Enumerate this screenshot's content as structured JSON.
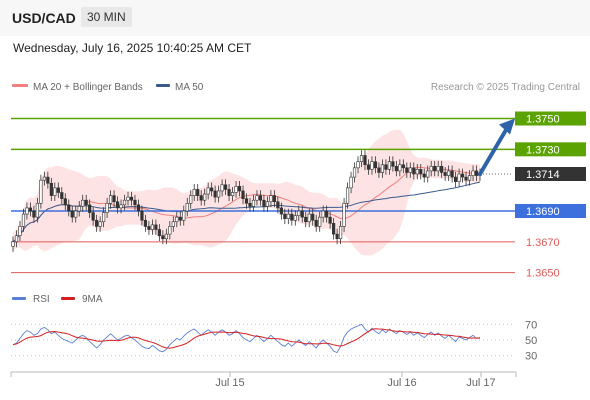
{
  "header": {
    "symbol": "USD/CAD",
    "timeframe": "30 MIN"
  },
  "datetime": "Wednesday, July 16, 2025 10:40:25 AM CET",
  "legend": {
    "ma20": "MA 20 + Bollinger Bands",
    "ma50": "MA 50",
    "rsi": "RSI",
    "ma9": "9MA"
  },
  "credit": "Research © 2025 Trading Central",
  "colors": {
    "resistance": "#5ba300",
    "pivot": "#3d6fdd",
    "support": "#e05a5a",
    "ma20": "#f08080",
    "ma50": "#3a5a8f",
    "bb_fill": "#fde3e3",
    "arrow": "#2e62a8",
    "current": "#333333",
    "rsi": "#5a7fd6",
    "rsi_ma": "#d42020"
  },
  "chart_data": [
    {
      "type": "candlestick",
      "ylim": [
        1.3642,
        1.3762
      ],
      "x_ticks": [
        "Jul 15",
        "Jul 16",
        "Jul 17"
      ],
      "levels": [
        {
          "label": "1.3750",
          "value": 1.375,
          "kind": "resistance",
          "style": "box"
        },
        {
          "label": "1.3730",
          "value": 1.373,
          "kind": "resistance",
          "style": "box"
        },
        {
          "label": "1.3714",
          "value": 1.3714,
          "kind": "current",
          "style": "box"
        },
        {
          "label": "1.3690",
          "value": 1.369,
          "kind": "pivot",
          "style": "box"
        },
        {
          "label": "1.3670",
          "value": 1.367,
          "kind": "support",
          "style": "text"
        },
        {
          "label": "1.3650",
          "value": 1.365,
          "kind": "support",
          "style": "text"
        }
      ],
      "close": [
        1.367,
        1.3674,
        1.368,
        1.3688,
        1.3692,
        1.369,
        1.3686,
        1.3695,
        1.371,
        1.3712,
        1.3708,
        1.37,
        1.3705,
        1.3702,
        1.3698,
        1.3694,
        1.369,
        1.3686,
        1.369,
        1.3693,
        1.3697,
        1.3694,
        1.3689,
        1.3684,
        1.368,
        1.3683,
        1.3689,
        1.3695,
        1.37,
        1.3696,
        1.3692,
        1.3694,
        1.3697,
        1.3699,
        1.3697,
        1.3694,
        1.369,
        1.3684,
        1.368,
        1.3678,
        1.3681,
        1.3678,
        1.3674,
        1.3672,
        1.3675,
        1.368,
        1.3683,
        1.3686,
        1.3684,
        1.369,
        1.3695,
        1.37,
        1.3704,
        1.37,
        1.3697,
        1.3701,
        1.3705,
        1.3703,
        1.3699,
        1.3703,
        1.3707,
        1.3704,
        1.37,
        1.3702,
        1.3706,
        1.3703,
        1.3698,
        1.3695,
        1.3693,
        1.3697,
        1.37,
        1.3697,
        1.3693,
        1.3696,
        1.37,
        1.3696,
        1.3692,
        1.3688,
        1.3685,
        1.3688,
        1.3684,
        1.3687,
        1.369,
        1.3686,
        1.3683,
        1.3688,
        1.3684,
        1.368,
        1.3686,
        1.369,
        1.3686,
        1.3682,
        1.3675,
        1.3672,
        1.368,
        1.3695,
        1.3705,
        1.3712,
        1.3718,
        1.3722,
        1.3726,
        1.372,
        1.3717,
        1.3722,
        1.3718,
        1.3715,
        1.372,
        1.3717,
        1.3722,
        1.3719,
        1.3716,
        1.372,
        1.3718,
        1.3715,
        1.3718,
        1.3714,
        1.3717,
        1.3714,
        1.3712,
        1.3716,
        1.3719,
        1.3716,
        1.3719,
        1.3715,
        1.3713,
        1.3716,
        1.3712,
        1.3709,
        1.3714,
        1.3712,
        1.371,
        1.3713,
        1.3716,
        1.3713,
        1.3714
      ],
      "projection_target": 1.375
    },
    {
      "type": "line",
      "ylim": [
        22,
        78
      ],
      "y_ticks": [
        70,
        50,
        30
      ],
      "series": [
        {
          "name": "RSI",
          "values": [
            44,
            46,
            52,
            58,
            62,
            60,
            56,
            58,
            64,
            66,
            63,
            58,
            60,
            56,
            52,
            50,
            48,
            46,
            50,
            54,
            56,
            53,
            48,
            44,
            40,
            44,
            50,
            54,
            58,
            54,
            50,
            52,
            55,
            56,
            53,
            50,
            46,
            42,
            40,
            39,
            43,
            40,
            36,
            35,
            38,
            44,
            48,
            52,
            50,
            55,
            59,
            62,
            64,
            60,
            56,
            60,
            63,
            60,
            56,
            60,
            63,
            60,
            56,
            58,
            62,
            58,
            53,
            50,
            48,
            52,
            56,
            52,
            48,
            52,
            56,
            52,
            48,
            44,
            42,
            46,
            42,
            46,
            50,
            46,
            43,
            48,
            44,
            40,
            46,
            50,
            46,
            42,
            36,
            34,
            42,
            54,
            60,
            64,
            66,
            68,
            70,
            64,
            60,
            65,
            61,
            58,
            63,
            59,
            64,
            61,
            58,
            62,
            60,
            57,
            60,
            56,
            59,
            56,
            53,
            57,
            60,
            56,
            59,
            55,
            52,
            56,
            52,
            48,
            54,
            52,
            50,
            53,
            56,
            52,
            53
          ]
        },
        {
          "name": "9MA",
          "values": []
        }
      ]
    }
  ]
}
